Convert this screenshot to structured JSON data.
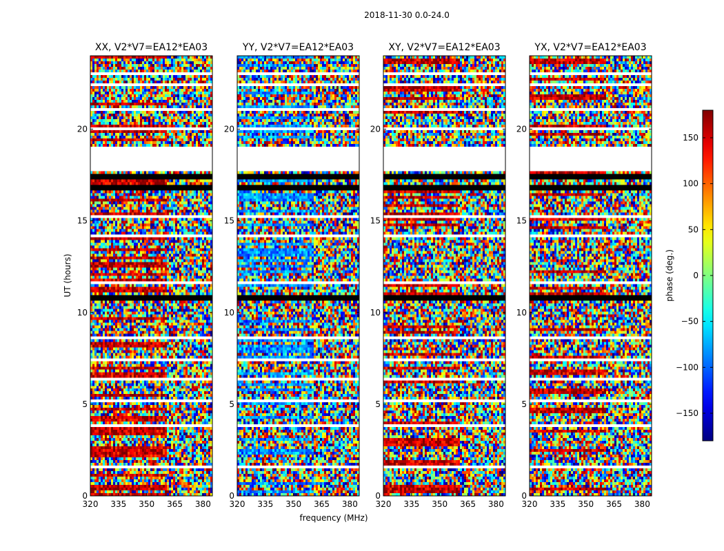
{
  "figure": {
    "suptitle": "2018-11-30 0.0-24.0"
  },
  "chart_data": {
    "type": "heatmap",
    "panels": [
      {
        "title": "XX, V2*V7=EA12*EA03",
        "seed": 11
      },
      {
        "title": "YY, V2*V7=EA12*EA03",
        "seed": 23
      },
      {
        "title": "XY, V2*V7=EA12*EA03",
        "seed": 37
      },
      {
        "title": "YX, V2*V7=EA12*EA03",
        "seed": 51
      }
    ],
    "xlabel": "frequency (MHz)",
    "ylabel": "UT (hours)",
    "xlim": [
      320,
      385
    ],
    "ylim": [
      0,
      24
    ],
    "xticks": [
      320,
      335,
      350,
      365,
      380
    ],
    "yticks": [
      0,
      5,
      10,
      15,
      20
    ],
    "colormap": "jet",
    "colorbar": {
      "label": "phase (deg.)",
      "range": [
        -180,
        180
      ],
      "ticks": [
        -150,
        -100,
        -50,
        0,
        50,
        100,
        150
      ],
      "tick_labels": [
        "−150",
        "−100",
        "−50",
        "0",
        "50",
        "100",
        "150"
      ]
    },
    "flagged_gaps_hours": [
      [
        17.7,
        19.1
      ]
    ],
    "black_bands_hours": [
      [
        17.2,
        17.6
      ],
      [
        16.6,
        16.9
      ],
      [
        10.6,
        10.9
      ]
    ],
    "white_bands_hours": [
      [
        23.0,
        23.15
      ],
      [
        22.4,
        22.5
      ],
      [
        21.0,
        21.1
      ],
      [
        19.9,
        20.05
      ],
      [
        15.2,
        15.3
      ],
      [
        14.1,
        14.25
      ],
      [
        11.6,
        11.75
      ],
      [
        8.5,
        8.65
      ],
      [
        7.4,
        7.5
      ],
      [
        6.3,
        6.45
      ],
      [
        5.1,
        5.2
      ],
      [
        3.8,
        3.9
      ],
      [
        1.5,
        1.6
      ],
      [
        0.4,
        0.5
      ]
    ]
  }
}
